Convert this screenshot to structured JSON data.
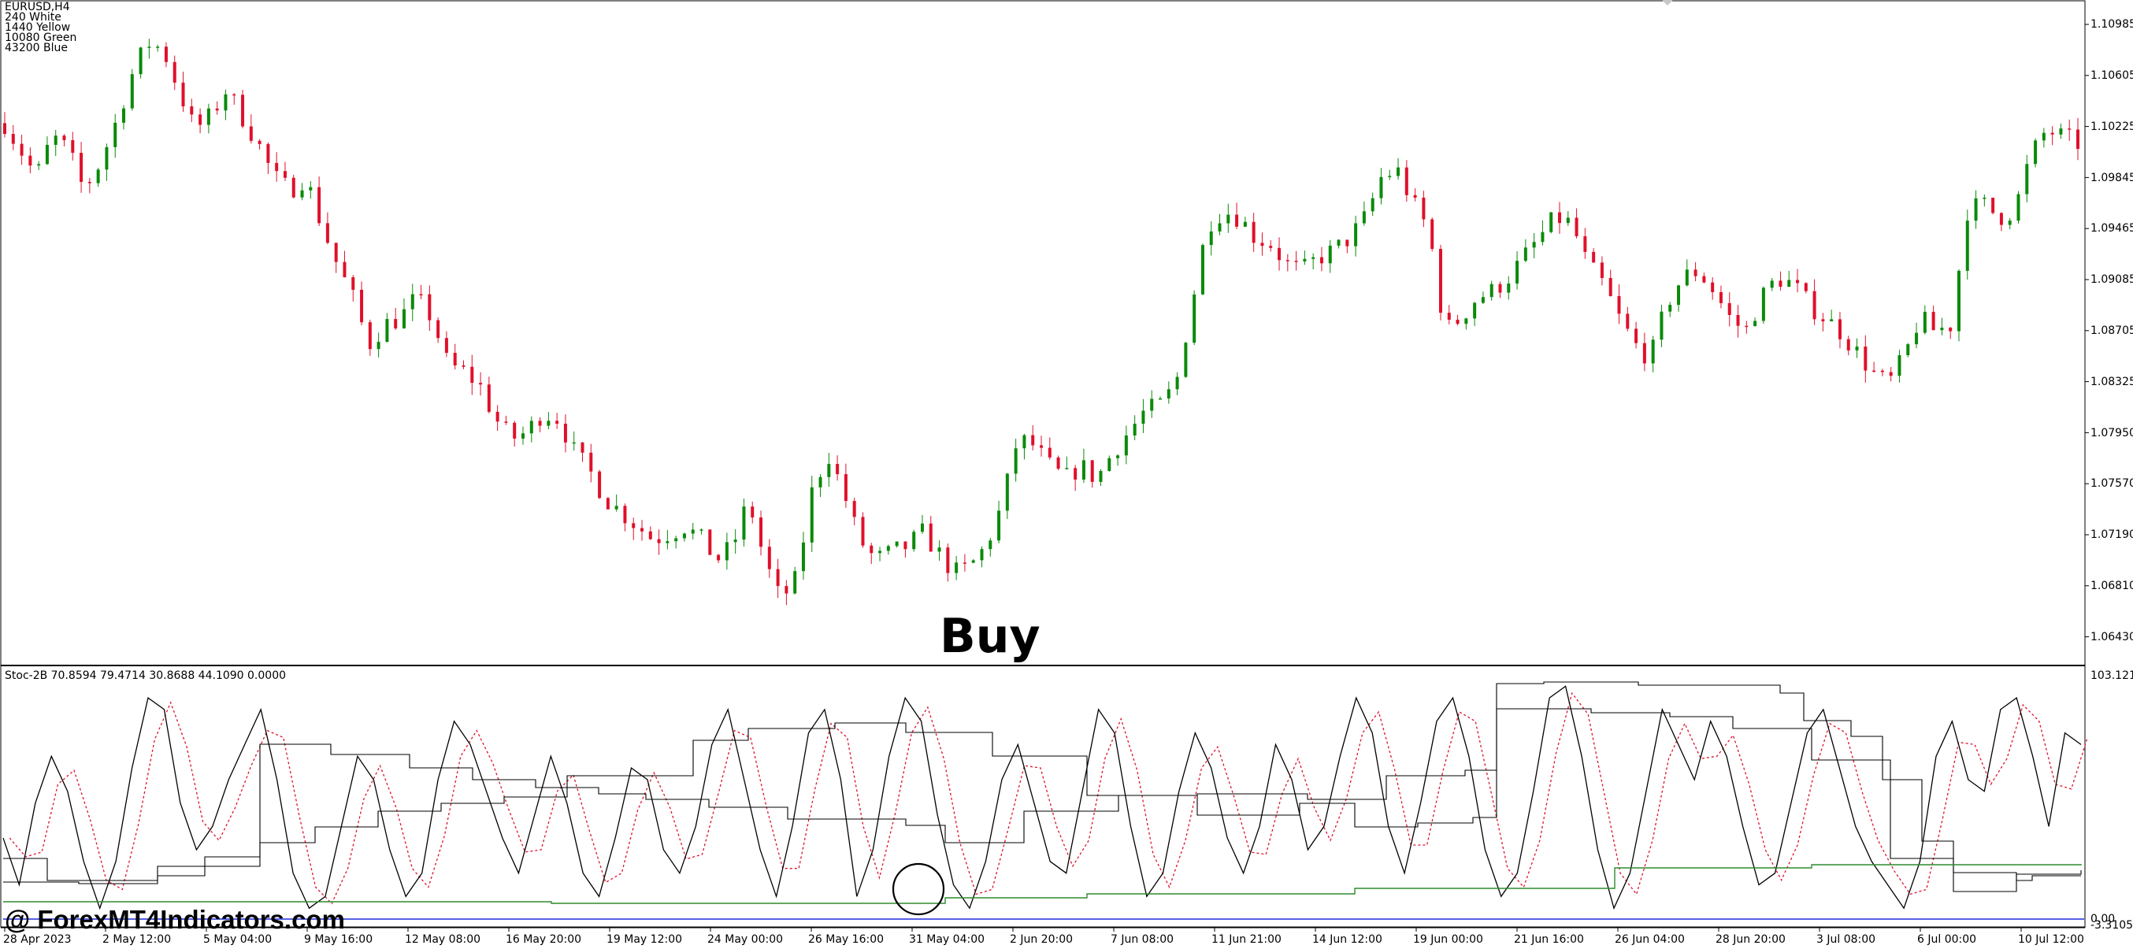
{
  "chart_info": {
    "symbol_timeframe": "EURUSD,H4",
    "legend_lines": [
      "240 White",
      "1440 Yellow",
      "10080 Green",
      "43200 Blue"
    ]
  },
  "indicator_label": "Stoc-2B 70.8594 79.4714 30.8688 44.1090 0.0000",
  "indicator_scale": {
    "top": "103.1214",
    "bottom_a": "0.00",
    "bottom_b": "-3.3105"
  },
  "annotation": "Buy",
  "watermark": "@ ForexMT4Indicators.com",
  "colors": {
    "bull": "#0a8a0a",
    "bear": "#e0102a",
    "stoch_main": "#000000",
    "stoch_signal": "#e0102a",
    "green_line": "#2e8b2e",
    "blue_line": "#1f2fd8"
  },
  "chart_data": {
    "type": "candlestick",
    "price_axis_labels": [
      "1.10985",
      "1.10605",
      "1.10225",
      "1.09845",
      "1.09465",
      "1.09085",
      "1.08705",
      "1.08325",
      "1.07950",
      "1.07570",
      "1.07190",
      "1.06810",
      "1.06430"
    ],
    "time_axis_labels": [
      "28 Apr 2023",
      "2 May 12:00",
      "5 May 04:00",
      "9 May 16:00",
      "12 May 08:00",
      "16 May 20:00",
      "19 May 12:00",
      "24 May 00:00",
      "26 May 16:00",
      "31 May 04:00",
      "2 Jun 20:00",
      "7 Jun 08:00",
      "11 Jun 21:00",
      "14 Jun 12:00",
      "19 Jun 00:00",
      "21 Jun 16:00",
      "26 Jun 04:00",
      "28 Jun 20:00",
      "3 Jul 08:00",
      "6 Jul 00:00",
      "10 Jul 12:00"
    ],
    "price_path": [
      1.1025,
      1.1005,
      1.0985,
      1.1015,
      1.1005,
      1.0975,
      1.0995,
      1.1025,
      1.106,
      1.1085,
      1.108,
      1.105,
      1.102,
      1.103,
      1.105,
      1.103,
      1.101,
      1.0985,
      1.0975,
      1.0985,
      1.095,
      1.092,
      1.0895,
      1.086,
      1.0875,
      1.088,
      1.0895,
      1.088,
      1.0845,
      1.084,
      1.083,
      1.0805,
      1.079,
      1.0795,
      1.081,
      1.0805,
      1.078,
      1.0765,
      1.0745,
      1.0735,
      1.0725,
      1.0715,
      1.072,
      1.0725,
      1.0715,
      1.07,
      1.071,
      1.0745,
      1.07,
      1.067,
      1.0685,
      1.075,
      1.078,
      1.075,
      1.0715,
      1.07,
      1.0705,
      1.071,
      1.072,
      1.0705,
      1.069,
      1.0695,
      1.071,
      1.074,
      1.079,
      1.0785,
      1.077,
      1.076,
      1.077,
      1.076,
      1.078,
      1.0795,
      1.081,
      1.0815,
      1.083,
      1.089,
      1.095,
      1.096,
      1.0955,
      1.094,
      1.0935,
      1.092,
      1.0915,
      1.0925,
      1.093,
      1.094,
      1.0955,
      1.0985,
      1.099,
      1.0965,
      1.0945,
      1.087,
      1.088,
      1.0895,
      1.09,
      1.091,
      1.0925,
      1.094,
      1.0955,
      1.095,
      1.092,
      1.0905,
      1.088,
      1.086,
      1.085,
      1.089,
      1.091,
      1.0915,
      1.09,
      1.088,
      1.087,
      1.0895,
      1.091,
      1.0905,
      1.089,
      1.088,
      1.087,
      1.0855,
      1.084,
      1.083,
      1.085,
      1.088,
      1.087,
      1.0875,
      1.096,
      1.0965,
      1.0955,
      1.096,
      1.1,
      1.102,
      1.1015,
      1.101
    ],
    "stoch_main": [
      35,
      15,
      50,
      70,
      55,
      25,
      5,
      25,
      65,
      95,
      90,
      50,
      30,
      40,
      60,
      75,
      90,
      60,
      20,
      5,
      10,
      40,
      70,
      60,
      30,
      10,
      20,
      60,
      85,
      75,
      55,
      35,
      20,
      45,
      70,
      50,
      20,
      10,
      35,
      65,
      60,
      30,
      20,
      40,
      75,
      90,
      60,
      30,
      10,
      40,
      80,
      90,
      60,
      10,
      30,
      70,
      95,
      85,
      45,
      15,
      5,
      25,
      60,
      75,
      50,
      25,
      20,
      55,
      90,
      80,
      40,
      10,
      20,
      55,
      80,
      65,
      35,
      20,
      40,
      75,
      60,
      30,
      40,
      70,
      95,
      80,
      40,
      20,
      50,
      85,
      95,
      70,
      30,
      10,
      20,
      55,
      95,
      100,
      70,
      30,
      5,
      20,
      55,
      90,
      75,
      60,
      85,
      70,
      40,
      15,
      20,
      50,
      80,
      90,
      65,
      40,
      25,
      15,
      5,
      25,
      70,
      85,
      60,
      55,
      90,
      95,
      70,
      40,
      80,
      75
    ]
  }
}
